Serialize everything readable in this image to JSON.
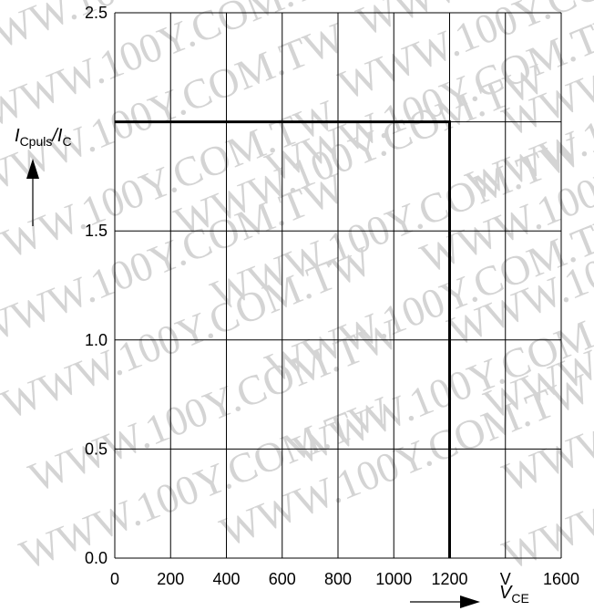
{
  "chart_data": {
    "type": "line",
    "x_ticks": [
      "0",
      "200",
      "400",
      "600",
      "800",
      "1000",
      "1200",
      "V",
      "1600"
    ],
    "y_ticks": [
      "0.0",
      "0.5",
      "1.0",
      "1.5",
      "2.5"
    ],
    "xlim": [
      0,
      1600
    ],
    "ylim": [
      0,
      2.5
    ],
    "grid": true,
    "ylabel": {
      "main": "I",
      "sub": "Cpuls",
      "sep": "/",
      "main2": "I",
      "sub2": "C"
    },
    "xlabel": {
      "main": "V",
      "sub": "CE"
    },
    "series": [
      {
        "x": [
          0,
          1200,
          1200
        ],
        "y": [
          2.0,
          2.0,
          0.0
        ]
      }
    ]
  },
  "watermark": "WWW.100Y.COM.TW"
}
